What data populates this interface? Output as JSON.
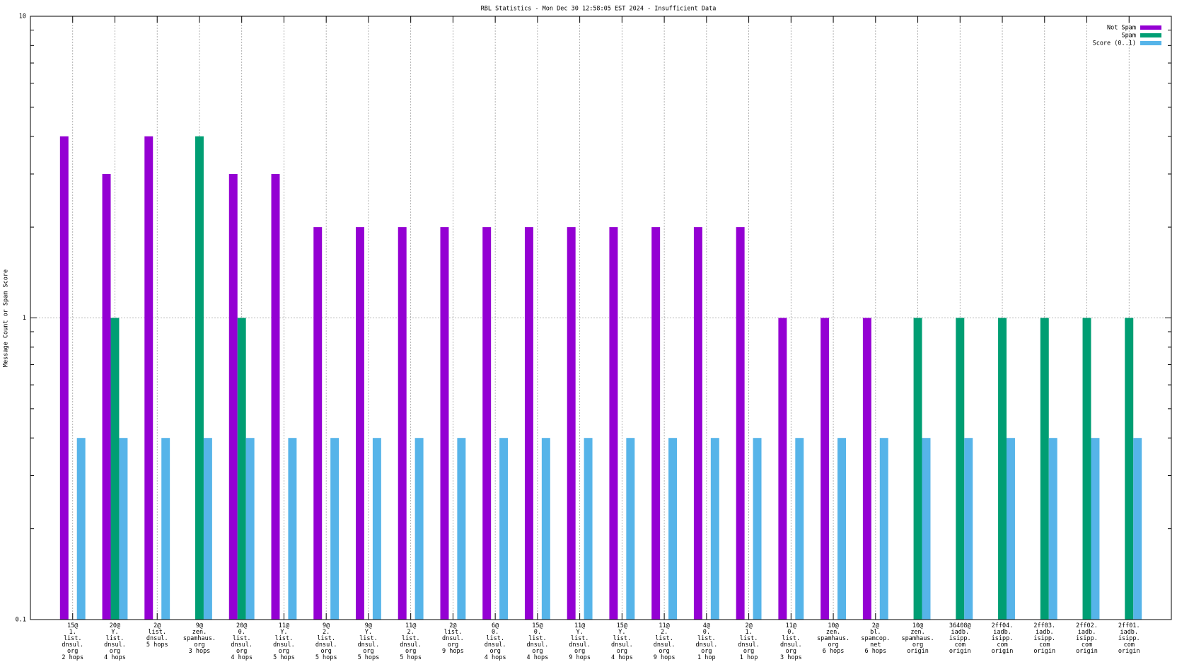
{
  "chart_data": {
    "type": "bar",
    "title": "RBL Statistics - Mon Dec 30 12:58:05 EST 2024 - Insufficient Data",
    "y_label": "Message Count or Spam Score",
    "log_scale_y": true,
    "grid": true,
    "legend": "top-right",
    "ylim": [
      0.1,
      10
    ],
    "yticks": [
      0.1,
      1,
      10
    ],
    "yminorticks": [
      0.2,
      0.3,
      0.4,
      0.5,
      0.6,
      0.7,
      0.8,
      0.9,
      2,
      3,
      4,
      5,
      6,
      7,
      8,
      9
    ],
    "categories": [
      [
        "15@",
        "1.",
        "list.",
        "dnsul.",
        "org",
        "2 hops"
      ],
      [
        "20@",
        "Y.",
        "list.",
        "dnsul.",
        "org",
        "4 hops"
      ],
      [
        "2@",
        "list.",
        "dnsul.",
        "5 hops"
      ],
      [
        "9@",
        "zen.",
        "spamhaus.",
        "org",
        "3 hops"
      ],
      [
        "20@",
        "0.",
        "list.",
        "dnsul.",
        "org",
        "4 hops"
      ],
      [
        "11@",
        "Y.",
        "list.",
        "dnsul.",
        "org",
        "5 hops"
      ],
      [
        "9@",
        "2.",
        "list.",
        "dnsul.",
        "org",
        "5 hops"
      ],
      [
        "9@",
        "Y.",
        "list.",
        "dnsul.",
        "org",
        "5 hops"
      ],
      [
        "11@",
        "2.",
        "list.",
        "dnsul.",
        "org",
        "5 hops"
      ],
      [
        "2@",
        "list.",
        "dnsul.",
        "org",
        "9 hops"
      ],
      [
        "6@",
        "0.",
        "list.",
        "dnsul.",
        "org",
        "4 hops"
      ],
      [
        "15@",
        "0.",
        "list.",
        "dnsul.",
        "org",
        "4 hops"
      ],
      [
        "11@",
        "Y.",
        "list.",
        "dnsul.",
        "org",
        "9 hops"
      ],
      [
        "15@",
        "Y.",
        "list.",
        "dnsul.",
        "org",
        "4 hops"
      ],
      [
        "11@",
        "2.",
        "list.",
        "dnsul.",
        "org",
        "9 hops"
      ],
      [
        "4@",
        "0.",
        "list.",
        "dnsul.",
        "org",
        "1 hop"
      ],
      [
        "2@",
        "1.",
        "list.",
        "dnsul.",
        "org",
        "1 hop"
      ],
      [
        "11@",
        "0.",
        "list.",
        "dnsul.",
        "org",
        "3 hops"
      ],
      [
        "10@",
        "zen.",
        "spamhaus.",
        "org",
        "6 hops"
      ],
      [
        "2@",
        "bl.",
        "spamcop.",
        "net",
        "6 hops"
      ],
      [
        "10@",
        "zen.",
        "spamhaus.",
        "org",
        "origin"
      ],
      [
        "36408@",
        "iadb.",
        "isipp.",
        "com",
        "origin"
      ],
      [
        "2ff04.",
        "iadb.",
        "isipp.",
        "com",
        "origin"
      ],
      [
        "2ff03.",
        "iadb.",
        "isipp.",
        "com",
        "origin"
      ],
      [
        "2ff02.",
        "iadb.",
        "isipp.",
        "com",
        "origin"
      ],
      [
        "2ff01.",
        "iadb.",
        "isipp.",
        "com",
        "origin"
      ]
    ],
    "series": [
      {
        "name": "Not Spam",
        "color": "#9400d3",
        "values": [
          4,
          3,
          4,
          null,
          3,
          3,
          2,
          2,
          2,
          2,
          2,
          2,
          2,
          2,
          2,
          2,
          2,
          1,
          1,
          1,
          null,
          null,
          null,
          null,
          null,
          null
        ]
      },
      {
        "name": "Spam",
        "color": "#009e73",
        "values": [
          null,
          1,
          null,
          4,
          1,
          null,
          null,
          null,
          null,
          null,
          null,
          null,
          null,
          null,
          null,
          null,
          null,
          null,
          null,
          null,
          1,
          1,
          1,
          1,
          1,
          1
        ]
      },
      {
        "name": "Score (0..1)",
        "color": "#56b4e9",
        "values": [
          0.4,
          0.4,
          0.4,
          0.4,
          0.4,
          0.4,
          0.4,
          0.4,
          0.4,
          0.4,
          0.4,
          0.4,
          0.4,
          0.4,
          0.4,
          0.4,
          0.4,
          0.4,
          0.4,
          0.4,
          0.4,
          0.4,
          0.4,
          0.4,
          0.4,
          0.4
        ]
      }
    ]
  }
}
